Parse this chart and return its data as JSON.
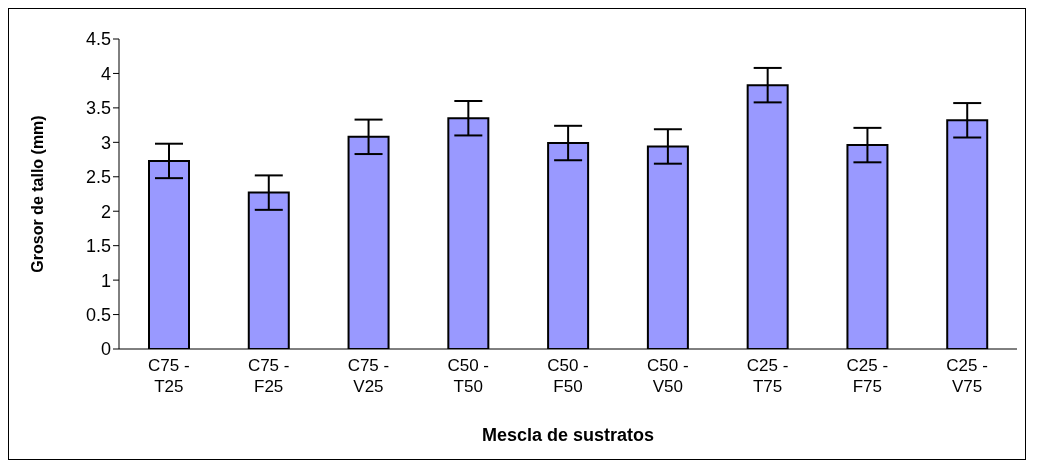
{
  "chart_data": {
    "type": "bar",
    "xlabel": "Mescla de sustratos",
    "ylabel": "Grosor de tallo (mm)",
    "categories": [
      "C75 - T25",
      "C75 - F25",
      "C75 - V25",
      "C50 - T50",
      "C50 - F50",
      "C50 - V50",
      "C25 - T75",
      "C25 - F75",
      "C25 - V75"
    ],
    "values": [
      2.73,
      2.27,
      3.08,
      3.35,
      2.99,
      2.94,
      3.83,
      2.96,
      3.32
    ],
    "errors": [
      0.25,
      0.25,
      0.25,
      0.25,
      0.25,
      0.25,
      0.25,
      0.25,
      0.25
    ],
    "color": "#9999ff",
    "ylim": [
      0,
      4.5
    ],
    "yticks": [
      0,
      0.5,
      1,
      1.5,
      2,
      2.5,
      3,
      3.5,
      4,
      4.5
    ],
    "grid": false,
    "legend": false
  }
}
